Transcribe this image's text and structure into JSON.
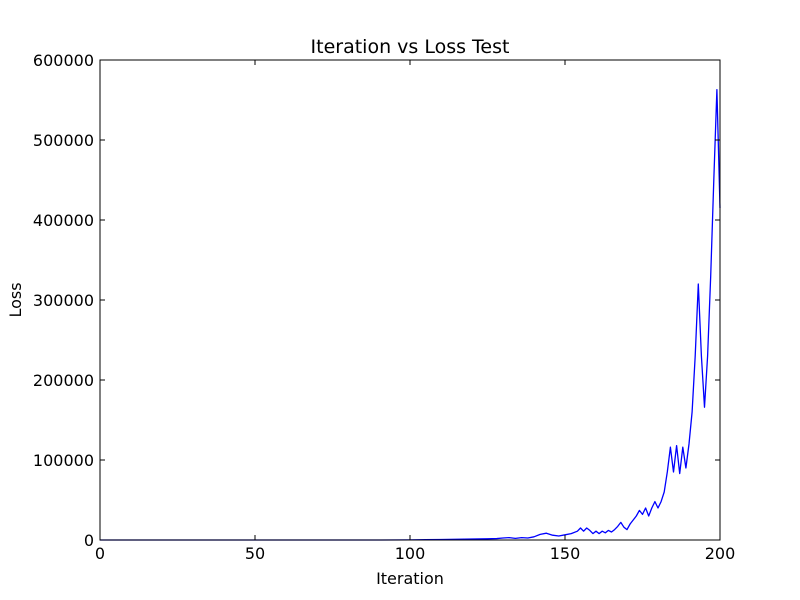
{
  "chart_data": {
    "type": "line",
    "title": "Iteration vs Loss Test",
    "xlabel": "Iteration",
    "ylabel": "Loss",
    "xlim": [
      0,
      200
    ],
    "ylim": [
      0,
      600000
    ],
    "xticks": [
      0,
      50,
      100,
      150,
      200
    ],
    "yticks": [
      0,
      100000,
      200000,
      300000,
      400000,
      500000,
      600000
    ],
    "grid": false,
    "line_color": "#0000ff",
    "series": [
      {
        "x": [
          0,
          10,
          20,
          30,
          40,
          50,
          60,
          70,
          80,
          90,
          100,
          105,
          110,
          115,
          120,
          125,
          128,
          130,
          132,
          134,
          136,
          138,
          140,
          142,
          144,
          146,
          148,
          150,
          152,
          154,
          155,
          156,
          157,
          158,
          159,
          160,
          161,
          162,
          163,
          164,
          165,
          166,
          167,
          168,
          169,
          170,
          171,
          172,
          173,
          174,
          175,
          176,
          177,
          178,
          179,
          180,
          181,
          182,
          183,
          184,
          185,
          186,
          187,
          188,
          189,
          190,
          191,
          192,
          193,
          194,
          195,
          196,
          197,
          198,
          199,
          200
        ],
        "y": [
          0,
          0,
          0,
          0,
          0,
          0,
          0,
          0,
          0,
          0,
          200,
          400,
          600,
          900,
          1200,
          1500,
          1800,
          2500,
          3000,
          2000,
          3000,
          2500,
          4000,
          7000,
          8500,
          6000,
          5000,
          6500,
          8000,
          11000,
          15000,
          11000,
          15000,
          12000,
          8000,
          11000,
          8000,
          11000,
          9000,
          12000,
          10000,
          13000,
          17000,
          22000,
          16000,
          13000,
          20000,
          25000,
          30000,
          37000,
          32000,
          40000,
          30000,
          40000,
          48000,
          40000,
          48000,
          60000,
          85000,
          116000,
          85000,
          118000,
          83000,
          116000,
          90000,
          120000,
          160000,
          230000,
          320000,
          230000,
          166000,
          230000,
          330000,
          450000,
          563000,
          415000
        ]
      }
    ]
  }
}
